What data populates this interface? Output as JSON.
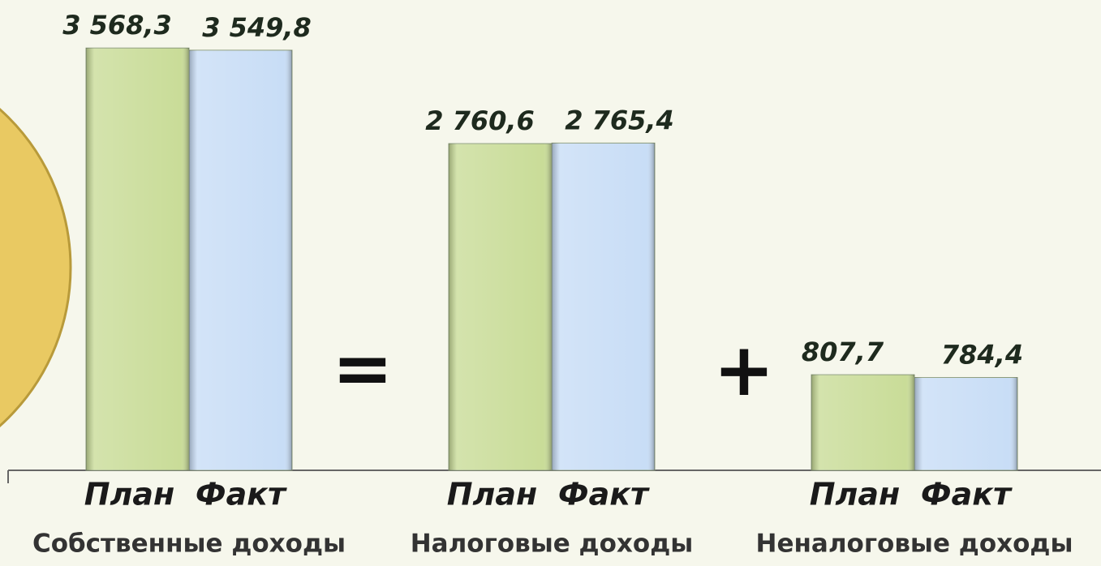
{
  "chart_data": {
    "type": "bar",
    "categories": [
      "Собственные доходы",
      "Налоговые доходы",
      "Неналоговые доходы"
    ],
    "series": [
      {
        "name": "План",
        "color": "#c9dc98",
        "values": [
          3568.3,
          2760.6,
          807.7
        ],
        "value_labels": [
          "3 568,3",
          "2 760,6",
          "807,7"
        ]
      },
      {
        "name": "Факт",
        "color": "#c8ddf6",
        "values": [
          3549.8,
          2765.4,
          784.4
        ],
        "value_labels": [
          "3 549,8",
          "2 765,4",
          "784,4"
        ]
      }
    ],
    "annotations": [
      "=",
      "+"
    ],
    "ylim": [
      0,
      3700
    ]
  }
}
